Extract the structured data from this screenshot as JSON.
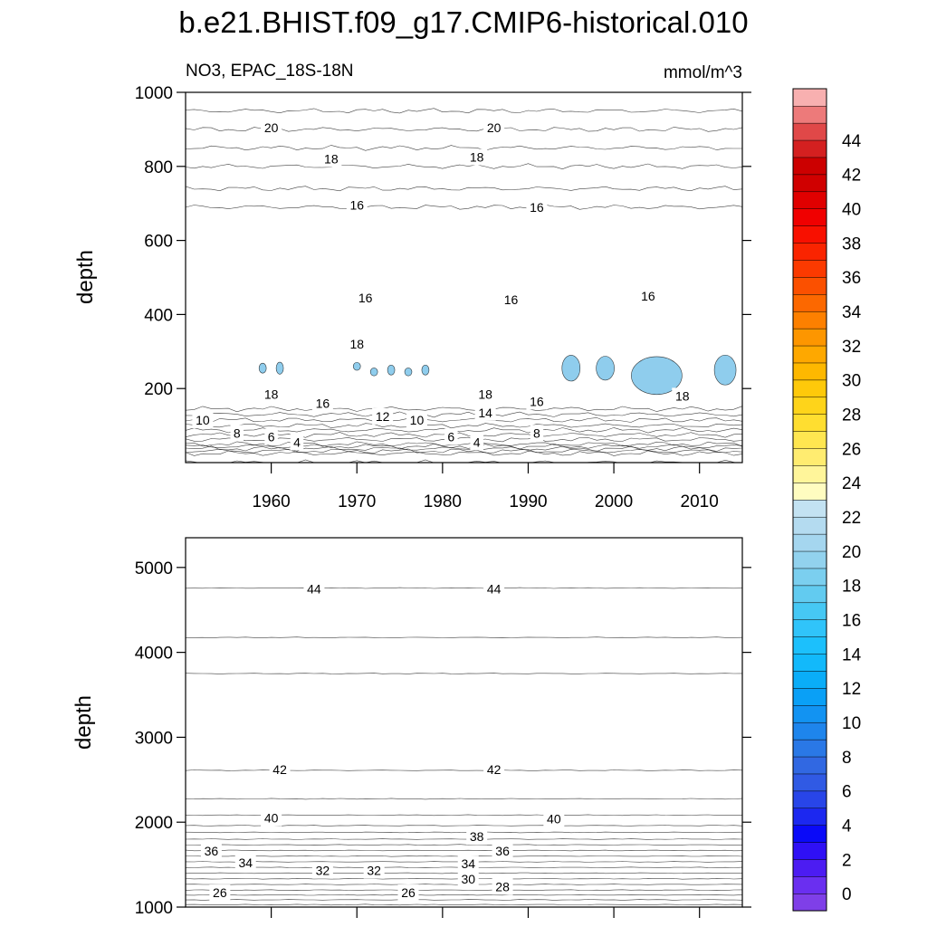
{
  "title": "b.e21.BHIST.f09_g17.CMIP6-historical.010",
  "subtitle_left": "NO3, EPAC_18S-18N",
  "subtitle_right": "mmol/m^3",
  "chart_data": [
    {
      "type": "heatmap",
      "panel": "top",
      "ylabel": "depth",
      "xlim": [
        1950,
        2015
      ],
      "ylim": [
        1000,
        0
      ],
      "xticks": [
        1960,
        1970,
        1980,
        1990,
        2000,
        2010
      ],
      "yticks": [
        200,
        400,
        600,
        800,
        1000
      ],
      "profile": [
        [
          0,
          2
        ],
        [
          25,
          3
        ],
        [
          50,
          7
        ],
        [
          75,
          9
        ],
        [
          100,
          11
        ],
        [
          130,
          13
        ],
        [
          160,
          15
        ],
        [
          190,
          17
        ],
        [
          230,
          18.5
        ],
        [
          280,
          18.5
        ],
        [
          330,
          17.7
        ],
        [
          380,
          16.7
        ],
        [
          430,
          16.0
        ],
        [
          470,
          15.2
        ],
        [
          520,
          14.6
        ],
        [
          600,
          14.2
        ],
        [
          660,
          14.4
        ],
        [
          700,
          15.2
        ],
        [
          740,
          16.0
        ],
        [
          800,
          17.0
        ],
        [
          850,
          18.0
        ],
        [
          900,
          19.0
        ],
        [
          950,
          20.0
        ],
        [
          1000,
          20.8
        ]
      ],
      "contour_labels": [
        {
          "year": 1952,
          "depth": 115,
          "value": "10"
        },
        {
          "year": 1956,
          "depth": 80,
          "value": "8"
        },
        {
          "year": 1960,
          "depth": 70,
          "value": "6"
        },
        {
          "year": 1963,
          "depth": 55,
          "value": "4"
        },
        {
          "year": 1960,
          "depth": 185,
          "value": "18"
        },
        {
          "year": 1966,
          "depth": 160,
          "value": "16"
        },
        {
          "year": 1973,
          "depth": 125,
          "value": "12"
        },
        {
          "year": 1977,
          "depth": 115,
          "value": "10"
        },
        {
          "year": 1981,
          "depth": 70,
          "value": "6"
        },
        {
          "year": 1984,
          "depth": 55,
          "value": "4"
        },
        {
          "year": 1985,
          "depth": 135,
          "value": "14"
        },
        {
          "year": 1991,
          "depth": 80,
          "value": "8"
        },
        {
          "year": 1991,
          "depth": 165,
          "value": "16"
        },
        {
          "year": 1985,
          "depth": 185,
          "value": "18"
        },
        {
          "year": 2008,
          "depth": 180,
          "value": "18"
        },
        {
          "year": 1970,
          "depth": 320,
          "value": "18"
        },
        {
          "year": 1971,
          "depth": 445,
          "value": "16"
        },
        {
          "year": 1988,
          "depth": 440,
          "value": "16"
        },
        {
          "year": 2004,
          "depth": 450,
          "value": "16"
        },
        {
          "year": 1970,
          "depth": 695,
          "value": "16"
        },
        {
          "year": 1991,
          "depth": 690,
          "value": "16"
        },
        {
          "year": 1967,
          "depth": 820,
          "value": "18"
        },
        {
          "year": 1984,
          "depth": 825,
          "value": "18"
        },
        {
          "year": 1960,
          "depth": 905,
          "value": "20"
        },
        {
          "year": 1986,
          "depth": 905,
          "value": "20"
        }
      ]
    },
    {
      "type": "heatmap",
      "panel": "bottom",
      "ylabel": "depth",
      "xlim": [
        1950,
        2015
      ],
      "ylim": [
        5350,
        1000
      ],
      "yticks": [
        1000,
        2000,
        3000,
        4000,
        5000
      ],
      "profile": [
        [
          1000,
          24.5
        ],
        [
          1200,
          28
        ],
        [
          1400,
          31
        ],
        [
          1600,
          34
        ],
        [
          1800,
          37
        ],
        [
          2000,
          39.5
        ],
        [
          2200,
          40.7
        ],
        [
          2400,
          41.5
        ],
        [
          2600,
          41.95
        ],
        [
          2620,
          42.05
        ],
        [
          3500,
          42.5
        ],
        [
          4100,
          43.7
        ],
        [
          4200,
          44.1
        ],
        [
          4750,
          44.4
        ],
        [
          4760,
          45.2
        ],
        [
          5350,
          45.6
        ]
      ],
      "contour_labels": [
        {
          "year": 1954,
          "depth": 1170,
          "value": "26"
        },
        {
          "year": 1957,
          "depth": 1520,
          "value": "34"
        },
        {
          "year": 1953,
          "depth": 1660,
          "value": "36"
        },
        {
          "year": 1966,
          "depth": 1430,
          "value": "32"
        },
        {
          "year": 1972,
          "depth": 1430,
          "value": "32"
        },
        {
          "year": 1976,
          "depth": 1170,
          "value": "26"
        },
        {
          "year": 1983,
          "depth": 1510,
          "value": "34"
        },
        {
          "year": 1983,
          "depth": 1330,
          "value": "30"
        },
        {
          "year": 1987,
          "depth": 1240,
          "value": "28"
        },
        {
          "year": 1984,
          "depth": 1830,
          "value": "38"
        },
        {
          "year": 1987,
          "depth": 1660,
          "value": "36"
        },
        {
          "year": 1960,
          "depth": 2050,
          "value": "40"
        },
        {
          "year": 1993,
          "depth": 2040,
          "value": "40"
        },
        {
          "year": 1961,
          "depth": 2620,
          "value": "42"
        },
        {
          "year": 1986,
          "depth": 2620,
          "value": "42"
        },
        {
          "year": 1965,
          "depth": 4750,
          "value": "44"
        },
        {
          "year": 1986,
          "depth": 4750,
          "value": "44"
        }
      ]
    }
  ],
  "colorbar": {
    "labels": [
      "0",
      "2",
      "4",
      "6",
      "8",
      "10",
      "12",
      "14",
      "16",
      "18",
      "20",
      "22",
      "24",
      "26",
      "28",
      "30",
      "32",
      "34",
      "36",
      "38",
      "40",
      "42",
      "44"
    ],
    "colors": [
      "#7f3fe8",
      "#6a2ff0",
      "#4c1cf2",
      "#2f10f5",
      "#0a0af8",
      "#1c28f0",
      "#2845e8",
      "#305ae4",
      "#3168e2",
      "#2a78e6",
      "#1e85ec",
      "#1293f2",
      "#0aa0f6",
      "#0aadf8",
      "#12b9fb",
      "#1cc0fc",
      "#30c4fa",
      "#46c8f4",
      "#62cbf0",
      "#7bcfef",
      "#92d2ee",
      "#a5d6ef",
      "#b4dbf0",
      "#c3e2f2",
      "#fffcc0",
      "#fff59a",
      "#ffec70",
      "#ffe650",
      "#ffde30",
      "#fed41a",
      "#fec90a",
      "#feb800",
      "#fea800",
      "#fd9600",
      "#fd8000",
      "#fc6800",
      "#fb5000",
      "#fb3a00",
      "#fa2400",
      "#f81000",
      "#f00000",
      "#e00000",
      "#d00000",
      "#cc0000",
      "#d42020",
      "#e04848",
      "#ed7a7a",
      "#f8b0b0"
    ]
  }
}
